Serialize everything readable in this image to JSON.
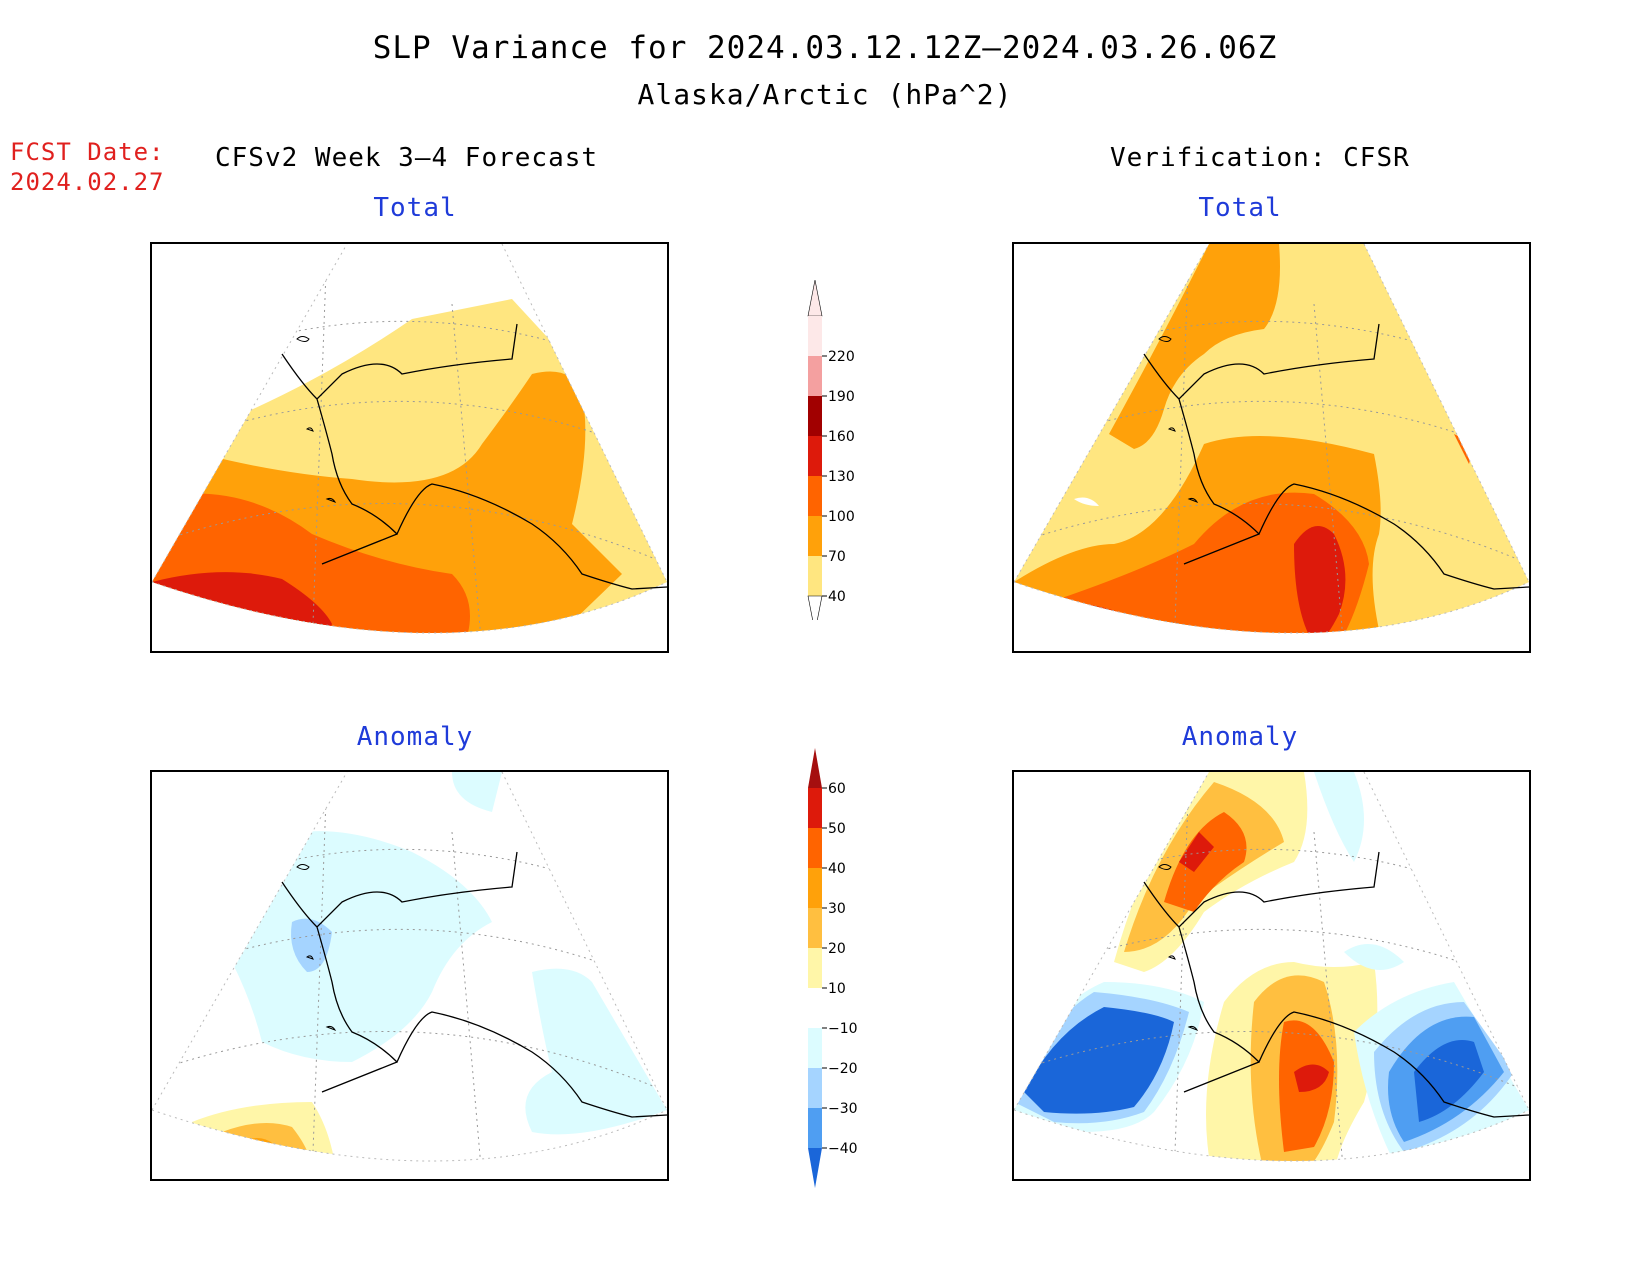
{
  "header": {
    "title": "SLP Variance for 2024.03.12.12Z–2024.03.26.06Z",
    "subtitle": "Alaska/Arctic (hPa^2)",
    "fcst_date_label": "FCST Date:",
    "fcst_date_value": "2024.02.27"
  },
  "columns": {
    "left_title": "CFSv2 Week 3–4 Forecast",
    "right_title": "Verification: CFSR"
  },
  "panels": {
    "forecast_total_title": "Total",
    "verification_total_title": "Total",
    "forecast_anomaly_title": "Anomaly",
    "verification_anomaly_title": "Anomaly"
  },
  "colorbars": {
    "total": {
      "levels": [
        "40",
        "70",
        "100",
        "130",
        "160",
        "190",
        "220"
      ],
      "colors": [
        "#ffffff",
        "#ffe680",
        "#ffa10a",
        "#ff6400",
        "#dd1a0b",
        "#a10000",
        "#f4a0a0",
        "#fde8e8"
      ]
    },
    "anomaly": {
      "levels": [
        "60",
        "50",
        "40",
        "30",
        "20",
        "10",
        "−10",
        "−20",
        "−30",
        "−40"
      ],
      "colors": [
        "#a50f0f",
        "#dd1a0b",
        "#ff6400",
        "#ffa10a",
        "#ffbf40",
        "#fff6a8",
        "#ffffff",
        "#dcfcff",
        "#a5d4ff",
        "#4f9ef2",
        "#1a66d9"
      ]
    }
  }
}
